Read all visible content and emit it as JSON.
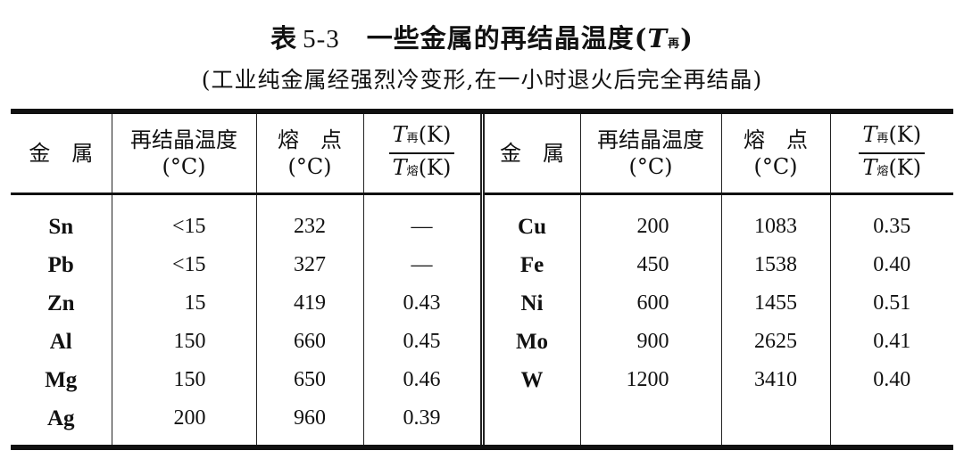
{
  "title": {
    "label": "表",
    "number": "5-3",
    "text": "一些金属的再结晶温度(",
    "symbol": "T",
    "subscript": "再",
    "close": ")"
  },
  "subtitle": "(工业纯金属经强烈冷变形,在一小时退火后完全再结晶)",
  "table": {
    "headers": {
      "metal": "金　属",
      "recryst": "再结晶温度",
      "recryst_unit": "(°C)",
      "melt": "熔　点",
      "melt_unit": "(°C)",
      "ratio_num_sym": "T",
      "ratio_num_sub": "再",
      "ratio_num_unit": "(K)",
      "ratio_den_sym": "T",
      "ratio_den_sub": "熔",
      "ratio_den_unit": "(K)"
    },
    "left_rows": [
      {
        "metal": "Sn",
        "recryst": "<15",
        "melt": "232",
        "ratio": "—"
      },
      {
        "metal": "Pb",
        "recryst": "<15",
        "melt": "327",
        "ratio": "—"
      },
      {
        "metal": "Zn",
        "recryst": "15",
        "melt": "419",
        "ratio": "0.43"
      },
      {
        "metal": "Al",
        "recryst": "150",
        "melt": "660",
        "ratio": "0.45"
      },
      {
        "metal": "Mg",
        "recryst": "150",
        "melt": "650",
        "ratio": "0.46"
      },
      {
        "metal": "Ag",
        "recryst": "200",
        "melt": "960",
        "ratio": "0.39"
      }
    ],
    "right_rows": [
      {
        "metal": "Cu",
        "recryst": "200",
        "melt": "1083",
        "ratio": "0.35"
      },
      {
        "metal": "Fe",
        "recryst": "450",
        "melt": "1538",
        "ratio": "0.40"
      },
      {
        "metal": "Ni",
        "recryst": "600",
        "melt": "1455",
        "ratio": "0.51"
      },
      {
        "metal": "Mo",
        "recryst": "900",
        "melt": "2625",
        "ratio": "0.41"
      },
      {
        "metal": "W",
        "recryst": "1200",
        "melt": "3410",
        "ratio": "0.40"
      },
      {
        "metal": "",
        "recryst": "",
        "melt": "",
        "ratio": ""
      }
    ]
  }
}
